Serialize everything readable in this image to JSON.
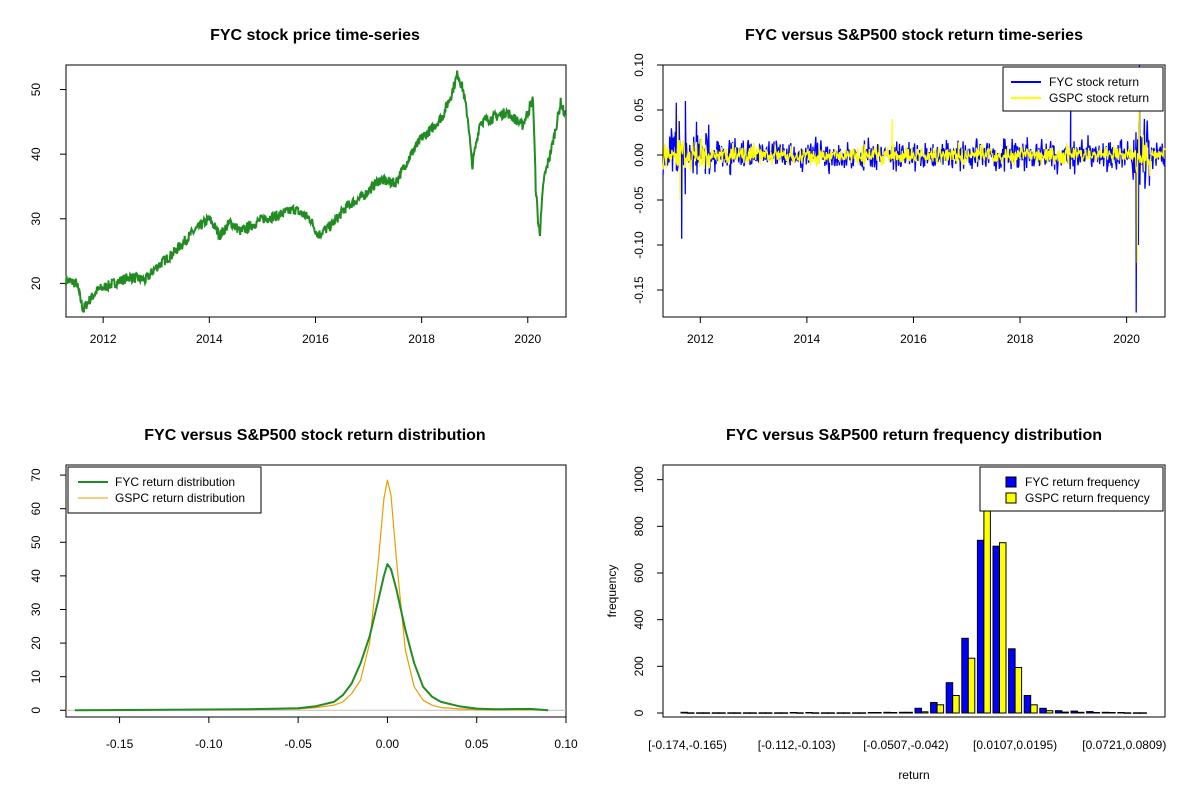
{
  "chart_data": [
    {
      "type": "line",
      "title": "FYC stock price time-series",
      "xlabel": "",
      "ylabel": "",
      "xlim": [
        2011.3,
        2020.72
      ],
      "ylim": [
        14.8,
        53.8
      ],
      "x_ticks": [
        2012,
        2014,
        2016,
        2018,
        2020
      ],
      "y_ticks": [
        20,
        30,
        40,
        50
      ],
      "colors": {
        "line": "#228b22"
      },
      "series": [
        {
          "x": [
            2011.3,
            2011.5,
            2011.62,
            2011.75,
            2011.9,
            2012.2,
            2012.5,
            2012.8,
            2013.0,
            2013.3,
            2013.7,
            2014.0,
            2014.2,
            2014.4,
            2014.6,
            2015.0,
            2015.3,
            2015.6,
            2015.9,
            2016.05,
            2016.3,
            2016.6,
            2016.9,
            2017.2,
            2017.5,
            2017.8,
            2018.0,
            2018.2,
            2018.4,
            2018.55,
            2018.68,
            2018.78,
            2018.88,
            2018.95,
            2019.1,
            2019.3,
            2019.6,
            2019.9,
            2020.1,
            2020.15,
            2020.2,
            2020.23,
            2020.3,
            2020.45,
            2020.55,
            2020.62,
            2020.7
          ],
          "y": [
            20.5,
            20.0,
            16.0,
            17.5,
            19.0,
            20.0,
            21.0,
            20.5,
            22.5,
            24.5,
            28.0,
            30.0,
            27.5,
            29.5,
            28.0,
            30.0,
            30.5,
            31.5,
            30.0,
            27.5,
            29.0,
            32.0,
            33.5,
            36.0,
            35.5,
            40.0,
            42.5,
            44.0,
            46.0,
            49.0,
            52.5,
            50.0,
            45.0,
            38.0,
            45.0,
            45.5,
            46.5,
            44.5,
            48.5,
            35.0,
            29.0,
            28.0,
            36.0,
            41.0,
            45.0,
            48.0,
            46.0
          ]
        }
      ]
    },
    {
      "type": "line",
      "title": "FYC versus S&P500 stock return time-series",
      "xlabel": "",
      "ylabel": "",
      "xlim": [
        2011.3,
        2020.72
      ],
      "ylim": [
        -0.18,
        0.1
      ],
      "x_ticks": [
        2012,
        2014,
        2016,
        2018,
        2020
      ],
      "y_ticks": [
        "-0.15",
        "-0.10",
        "-0.05",
        "0.00",
        "0.05",
        "0.10"
      ],
      "legend": {
        "position": "top-right",
        "entries": [
          "FYC stock return",
          "GSPC stock return"
        ]
      },
      "series": [
        {
          "name": "FYC stock return",
          "color": "#0000ff",
          "sigma": 0.012,
          "extremes": [
            [
              2011.65,
              -0.093
            ],
            [
              2011.55,
              0.058
            ],
            [
              2011.72,
              0.06
            ],
            [
              2018.95,
              0.055
            ],
            [
              2020.18,
              -0.175
            ],
            [
              2020.24,
              0.1
            ],
            [
              2020.22,
              -0.1
            ]
          ]
        },
        {
          "name": "GSPC stock return",
          "color": "#ffff00",
          "sigma": 0.007,
          "extremes": [
            [
              2011.62,
              -0.05
            ],
            [
              2011.58,
              0.045
            ],
            [
              2015.6,
              0.04
            ],
            [
              2020.2,
              -0.12
            ],
            [
              2020.23,
              0.09
            ]
          ]
        }
      ]
    },
    {
      "type": "line",
      "title": "FYC versus S&P500 stock return distribution",
      "xlabel": "",
      "ylabel": "",
      "xlim": [
        -0.18,
        0.1
      ],
      "ylim": [
        -2,
        73
      ],
      "x_ticks": [
        "-0.15",
        "-0.10",
        "-0.05",
        "0.00",
        "0.05",
        "0.10"
      ],
      "y_ticks": [
        0,
        10,
        20,
        30,
        40,
        50,
        60,
        70
      ],
      "legend": {
        "position": "top-left",
        "entries": [
          "FYC return distribution",
          "GSPC return distribution"
        ]
      },
      "series": [
        {
          "name": "FYC return distribution",
          "color": "#228b22",
          "x": [
            -0.175,
            -0.08,
            -0.05,
            -0.04,
            -0.03,
            -0.025,
            -0.02,
            -0.015,
            -0.01,
            -0.005,
            -0.002,
            0.0,
            0.002,
            0.005,
            0.01,
            0.015,
            0.02,
            0.025,
            0.03,
            0.04,
            0.05,
            0.06,
            0.08,
            0.09
          ],
          "y": [
            0,
            0.3,
            0.6,
            1.2,
            2.5,
            4.5,
            8,
            14,
            22,
            33,
            40,
            43.5,
            42,
            36,
            24,
            14,
            7,
            4,
            2.5,
            1.2,
            0.5,
            0.3,
            0.4,
            0
          ]
        },
        {
          "name": "GSPC return distribution",
          "color": "#e69f00",
          "x": [
            -0.175,
            -0.08,
            -0.05,
            -0.04,
            -0.03,
            -0.025,
            -0.02,
            -0.015,
            -0.01,
            -0.005,
            -0.002,
            0.0,
            0.002,
            0.005,
            0.01,
            0.015,
            0.02,
            0.025,
            0.03,
            0.04,
            0.05,
            0.06,
            0.08,
            0.09
          ],
          "y": [
            0,
            0.2,
            0.4,
            0.8,
            1.5,
            2.5,
            5,
            9,
            20,
            45,
            63,
            68.5,
            64,
            45,
            18,
            7,
            3,
            1.5,
            0.8,
            0.4,
            0.2,
            0.1,
            0.2,
            0
          ]
        }
      ]
    },
    {
      "type": "bar",
      "title": "FYC versus S&P500 return frequency distribution",
      "xlabel": "return",
      "ylabel": "frequency",
      "ylim": [
        0,
        1050
      ],
      "y_ticks": [
        0,
        200,
        400,
        600,
        800,
        1000
      ],
      "x_tick_labels": [
        "[-0.174,-0.165)",
        "[-0.112,-0.103)",
        "[-0.0507,-0.042)",
        "[0.0107,0.0195)",
        "[0.0721,0.0809)"
      ],
      "x_tick_bins": [
        0,
        7,
        14,
        21,
        28
      ],
      "legend": {
        "position": "top-right",
        "entries": [
          "FYC return frequency",
          "GSPC return frequency"
        ]
      },
      "series": [
        {
          "name": "FYC return frequency",
          "color": "#0000ff",
          "values": [
            3,
            1,
            1,
            1,
            1,
            1,
            1,
            2,
            2,
            1,
            1,
            1,
            2,
            3,
            3,
            20,
            45,
            130,
            320,
            740,
            715,
            275,
            75,
            20,
            10,
            8,
            6,
            3,
            2,
            1
          ]
        },
        {
          "name": "GSPC return frequency",
          "color": "#ffff00",
          "values": [
            1,
            1,
            1,
            1,
            1,
            1,
            1,
            1,
            1,
            1,
            1,
            1,
            2,
            2,
            3,
            5,
            35,
            75,
            235,
            1050,
            730,
            195,
            35,
            10,
            4,
            3,
            2,
            2,
            1,
            1
          ]
        }
      ]
    }
  ]
}
